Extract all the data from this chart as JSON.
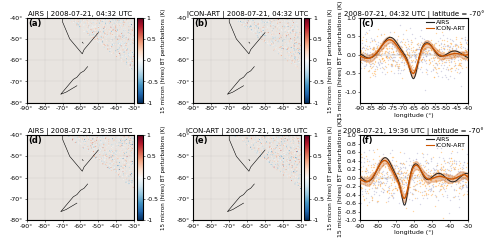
{
  "panel_labels": [
    "(a)",
    "(b)",
    "(c)",
    "(d)",
    "(e)",
    "(f)"
  ],
  "titles_map_top": [
    "AIRS | 2008-07-21, 04:32 UTC",
    "ICON-ART | 2008-07-21, 04:32 UTC"
  ],
  "titles_map_bot": [
    "AIRS | 2008-07-21, 19:38 UTC",
    "ICON-ART | 2008-07-21, 19:36 UTC"
  ],
  "title_line_c": "2008-07-21, 04:32 UTC | latitude = -70°",
  "title_line_f": "2008-07-21, 19:36 UTC | latitude = -70°",
  "xlabel_line": "longitude (°)",
  "ylabel_line": "15 micron (hires) BT perturbations (K)",
  "xlim_map": [
    -90,
    -30
  ],
  "ylim_map": [
    -80,
    -40
  ],
  "xticks_map": [
    -90,
    -80,
    -70,
    -60,
    -50,
    -40,
    -30
  ],
  "yticks_map": [
    -80,
    -70,
    -60,
    -50,
    -40
  ],
  "xlim_line_c": [
    -90,
    -40
  ],
  "ylim_line_c": [
    -1.3,
    1.0
  ],
  "xlim_line_f": [
    -90,
    -30
  ],
  "ylim_line_f": [
    -1.0,
    1.0
  ],
  "xticks_line_c": [
    -90,
    -85,
    -80,
    -75,
    -70,
    -65,
    -60,
    -55,
    -50,
    -45,
    -40
  ],
  "yticks_line_c": [
    -1.0,
    -0.5,
    0.0,
    0.5,
    1.0
  ],
  "xticks_line_f": [
    -90,
    -80,
    -70,
    -60,
    -50,
    -40,
    -30
  ],
  "yticks_line_f": [
    -1.0,
    -0.8,
    -0.6,
    -0.4,
    -0.2,
    0.0,
    0.2,
    0.4,
    0.6,
    0.8,
    1.0
  ],
  "cbar_label": "15 micron (hires) BT perturbations (K)",
  "cbar_ticks": [
    -1,
    -0.5,
    0,
    0.5,
    1
  ],
  "vmin": -1,
  "vmax": 1,
  "cmap": "RdBu_r",
  "airs_color": "#222222",
  "icon_color": "#cc5500",
  "scatter_airs_color": "#aaaacc",
  "scatter_icon_color": "#ffaa44",
  "legend_labels": [
    "AIRS",
    "ICON-ART"
  ],
  "panel_label_fontsize": 6,
  "title_fontsize": 5,
  "tick_fontsize": 4.5,
  "legend_fontsize": 4.5,
  "ylabel_fontsize": 4.5,
  "xlabel_fontsize": 4.5,
  "cbar_label_fontsize": 4
}
